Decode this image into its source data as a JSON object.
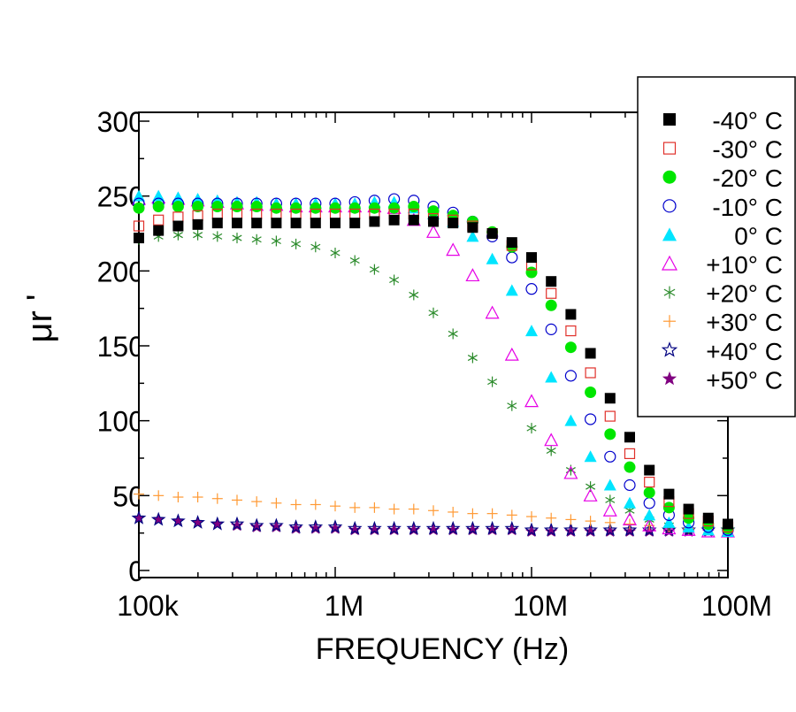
{
  "chart_data": {
    "type": "scatter",
    "title": "",
    "xlabel": "FREQUENCY (Hz)",
    "ylabel": "μr '",
    "x_scale": "log",
    "xlim": [
      100000,
      100000000
    ],
    "ylim": [
      0,
      300
    ],
    "x_ticks": [
      {
        "v": 100000,
        "label": "100k"
      },
      {
        "v": 1000000,
        "label": "1M"
      },
      {
        "v": 10000000,
        "label": "10M"
      },
      {
        "v": 100000000,
        "label": "100M"
      }
    ],
    "y_ticks": [
      {
        "v": 0,
        "label": "0"
      },
      {
        "v": 50,
        "label": "50"
      },
      {
        "v": 100,
        "label": "100"
      },
      {
        "v": 150,
        "label": "150"
      },
      {
        "v": 200,
        "label": "200"
      },
      {
        "v": 250,
        "label": "250"
      },
      {
        "v": 300,
        "label": "300"
      }
    ],
    "grid": false,
    "legend_position": "top-right",
    "x_log10": [
      5.0,
      5.1,
      5.2,
      5.3,
      5.4,
      5.5,
      5.6,
      5.7,
      5.8,
      5.9,
      6.0,
      6.1,
      6.2,
      6.3,
      6.4,
      6.5,
      6.6,
      6.7,
      6.8,
      6.9,
      7.0,
      7.1,
      7.2,
      7.3,
      7.4,
      7.5,
      7.6,
      7.7,
      7.8,
      7.9,
      8.0
    ],
    "series": [
      {
        "name": "-40° C",
        "marker": "square-filled",
        "color": "#000000",
        "values": [
          222,
          227,
          230,
          231,
          232,
          232,
          232,
          232,
          232,
          232,
          232,
          232,
          233,
          234,
          234,
          233,
          232,
          229,
          225,
          219,
          209,
          193,
          171,
          145,
          115,
          89,
          67,
          51,
          41,
          35,
          31
        ]
      },
      {
        "name": "-30° C",
        "marker": "square-open",
        "color": "#e0302a",
        "values": [
          230,
          234,
          236,
          237,
          238,
          238,
          238,
          238,
          238,
          238,
          238,
          238,
          238,
          238,
          238,
          235,
          234,
          230,
          225,
          217,
          204,
          185,
          160,
          132,
          103,
          78,
          59,
          46,
          38,
          33,
          29
        ]
      },
      {
        "name": "-20° C",
        "marker": "circle-filled",
        "color": "#00e600",
        "values": [
          242,
          243,
          243,
          243,
          243,
          243,
          243,
          242,
          242,
          242,
          242,
          242,
          242,
          242,
          243,
          240,
          237,
          233,
          226,
          216,
          199,
          177,
          149,
          119,
          91,
          69,
          52,
          42,
          35,
          31,
          28
        ]
      },
      {
        "name": "-10° C",
        "marker": "circle-open",
        "color": "#0000cc",
        "values": [
          245,
          245,
          245,
          245,
          245,
          245,
          245,
          245,
          245,
          245,
          245,
          246,
          247,
          248,
          247,
          243,
          239,
          233,
          223,
          209,
          188,
          161,
          130,
          101,
          76,
          57,
          45,
          37,
          32,
          29,
          27
        ]
      },
      {
        "name": "0° C",
        "marker": "triangle-filled",
        "color": "#00e5ff",
        "values": [
          250,
          250,
          249,
          248,
          247,
          246,
          246,
          245,
          245,
          245,
          245,
          245,
          246,
          246,
          242,
          238,
          233,
          223,
          208,
          187,
          160,
          129,
          100,
          76,
          57,
          45,
          37,
          32,
          29,
          27,
          26
        ]
      },
      {
        "name": "+10° C",
        "marker": "triangle-open",
        "color": "#e600e6",
        "values": [
          248,
          249,
          248,
          247,
          246,
          245,
          244,
          244,
          243,
          243,
          243,
          243,
          243,
          242,
          234,
          226,
          214,
          197,
          172,
          144,
          113,
          87,
          65,
          50,
          40,
          34,
          30,
          28,
          27,
          26,
          26
        ]
      },
      {
        "name": "+20° C",
        "marker": "asterisk",
        "color": "#2a8a2a",
        "values": [
          221,
          223,
          224,
          224,
          223,
          222,
          221,
          220,
          218,
          216,
          212,
          207,
          201,
          194,
          184,
          172,
          158,
          142,
          126,
          110,
          95,
          80,
          67,
          56,
          47,
          40,
          34,
          30,
          28,
          27,
          26
        ]
      },
      {
        "name": "+30° C",
        "marker": "plus",
        "color": "#ff9933",
        "values": [
          51,
          50,
          49,
          49,
          48,
          47,
          46,
          45,
          44,
          44,
          43,
          42,
          42,
          41,
          41,
          40,
          39,
          38,
          38,
          37,
          36,
          35,
          34,
          33,
          32,
          31,
          30,
          29,
          28,
          28,
          27
        ]
      },
      {
        "name": "+40° C",
        "marker": "star-open",
        "color": "#000080",
        "values": [
          35,
          34,
          33,
          32,
          31,
          31,
          30,
          30,
          29,
          29,
          29,
          28,
          28,
          28,
          28,
          28,
          28,
          28,
          28,
          28,
          27,
          27,
          27,
          27,
          27,
          27,
          27,
          27,
          27,
          27,
          27
        ]
      },
      {
        "name": "+50° C",
        "marker": "star-filled",
        "color": "#800080",
        "values": [
          35,
          34,
          33,
          32,
          31,
          30,
          29,
          29,
          28,
          28,
          28,
          27,
          27,
          27,
          27,
          27,
          27,
          27,
          27,
          27,
          26,
          26,
          26,
          26,
          26,
          26,
          26,
          26,
          26,
          26,
          26
        ]
      }
    ]
  }
}
